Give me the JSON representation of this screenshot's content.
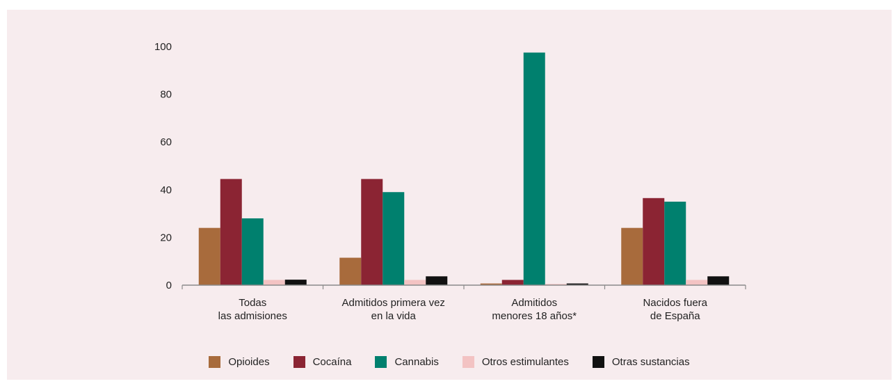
{
  "colors": {
    "background": "#f7ecee",
    "axis": "#8a8a8a"
  },
  "chart_data": {
    "type": "bar",
    "categories": [
      [
        "Todas",
        "las admisiones"
      ],
      [
        "Admitidos primera vez",
        "en la vida"
      ],
      [
        "Admitidos",
        "menores 18 años*"
      ],
      [
        "Nacidos fuera",
        "de España"
      ]
    ],
    "series": [
      {
        "name": "Opioides",
        "color": "#a86b3c",
        "values": [
          24,
          11.5,
          0.7,
          24
        ]
      },
      {
        "name": "Cocaína",
        "color": "#8b2433",
        "values": [
          44.5,
          44.5,
          2.2,
          36.5
        ]
      },
      {
        "name": "Cannabis",
        "color": "#00806e",
        "values": [
          28,
          39,
          97.5,
          35
        ]
      },
      {
        "name": "Otros estimulantes",
        "color": "#f3c3c3",
        "values": [
          2.2,
          2.2,
          0.5,
          2.2
        ]
      },
      {
        "name": "Otras sustancias",
        "color": "#111111",
        "values": [
          2.3,
          3.7,
          0.7,
          3.7
        ]
      }
    ],
    "ylim": [
      0,
      100
    ],
    "yticks": [
      0,
      20,
      40,
      60,
      80,
      100
    ],
    "grid": false,
    "legend_position": "bottom"
  }
}
